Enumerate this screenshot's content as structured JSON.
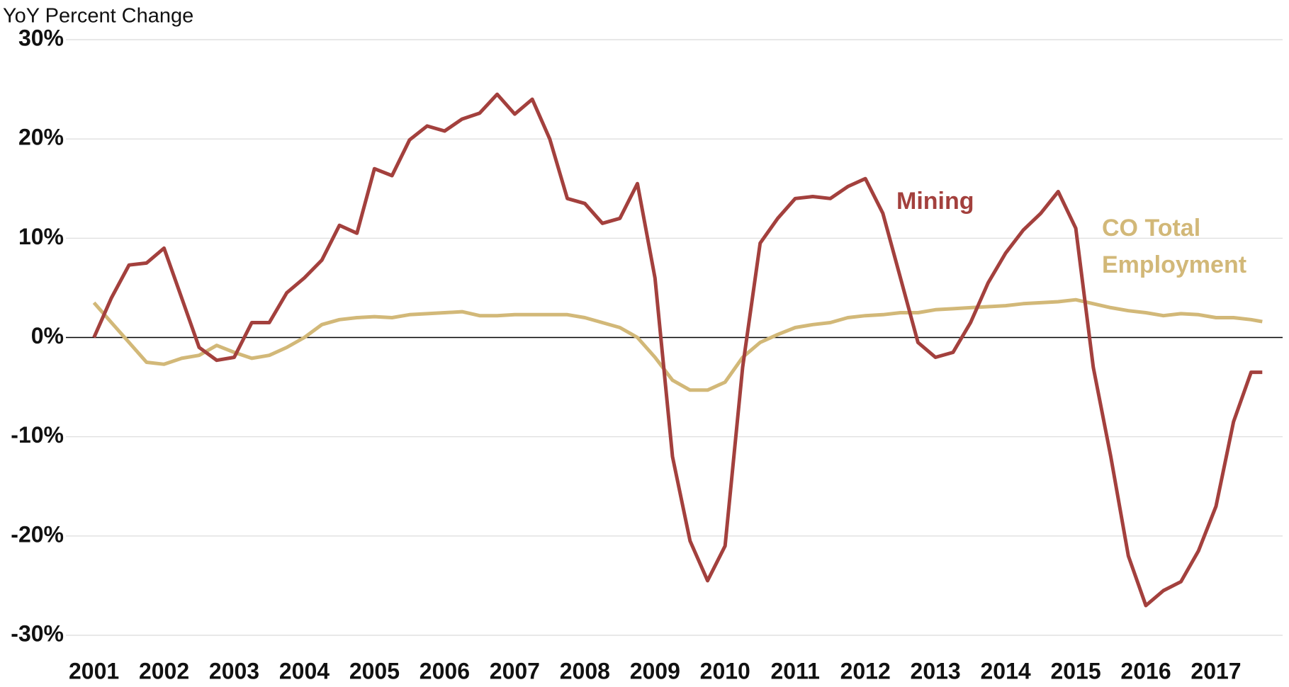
{
  "chart_data": {
    "type": "line",
    "y_axis_label": "YoY Percent Change",
    "x": [
      2001,
      2001.25,
      2001.5,
      2001.75,
      2002,
      2002.25,
      2002.5,
      2002.75,
      2003,
      2003.25,
      2003.5,
      2003.75,
      2004,
      2004.25,
      2004.5,
      2004.75,
      2005,
      2005.25,
      2005.5,
      2005.75,
      2006,
      2006.25,
      2006.5,
      2006.75,
      2007,
      2007.25,
      2007.5,
      2007.75,
      2008,
      2008.25,
      2008.5,
      2008.75,
      2009,
      2009.25,
      2009.5,
      2009.75,
      2010,
      2010.25,
      2010.5,
      2010.75,
      2011,
      2011.25,
      2011.5,
      2011.75,
      2012,
      2012.25,
      2012.5,
      2012.75,
      2013,
      2013.25,
      2013.5,
      2013.75,
      2014,
      2014.25,
      2014.5,
      2014.75,
      2015,
      2015.25,
      2015.5,
      2015.75,
      2016,
      2016.25,
      2016.5,
      2016.75,
      2017,
      2017.25,
      2017.5,
      2017.66
    ],
    "series": [
      {
        "name": "Mining",
        "color": "#a3403d",
        "label_at": "peak",
        "values": [
          0,
          4,
          7.3,
          7.5,
          9,
          4,
          -1,
          -2.3,
          -2,
          1.5,
          1.5,
          4.5,
          6,
          7.8,
          11.3,
          10.5,
          17,
          16.3,
          19.9,
          21.3,
          20.8,
          22,
          22.6,
          24.5,
          22.5,
          24,
          20,
          14,
          13.5,
          11.5,
          12,
          15.5,
          6,
          -12,
          -20.5,
          -24.5,
          -21,
          -3,
          9.5,
          12,
          14,
          14.2,
          14,
          15.2,
          16,
          12.5,
          6,
          -0.5,
          -2,
          -1.5,
          1.5,
          5.5,
          8.5,
          10.8,
          12.5,
          14.7,
          11,
          -3,
          -12,
          -22,
          -27,
          -25.5,
          -24.6,
          -21.5,
          -17,
          -8.5,
          -3.5,
          -3.5
        ]
      },
      {
        "name": "CO Total Employment",
        "color": "#d2b878",
        "values": [
          3.5,
          1.5,
          -0.5,
          -2.5,
          -2.7,
          -2.1,
          -1.8,
          -0.8,
          -1.5,
          -2.1,
          -1.8,
          -1,
          0,
          1.3,
          1.8,
          2,
          2.1,
          2,
          2.3,
          2.4,
          2.5,
          2.6,
          2.2,
          2.2,
          2.3,
          2.3,
          2.3,
          2.3,
          2,
          1.5,
          1,
          0,
          -2,
          -4.3,
          -5.3,
          -5.3,
          -4.5,
          -2,
          -0.5,
          0.3,
          1,
          1.3,
          1.5,
          2,
          2.2,
          2.3,
          2.5,
          2.5,
          2.8,
          2.9,
          3,
          3.1,
          3.2,
          3.4,
          3.5,
          3.6,
          3.8,
          3.4,
          3,
          2.7,
          2.5,
          2.2,
          2.4,
          2.3,
          2,
          2,
          1.8,
          1.6
        ]
      }
    ],
    "xlim": [
      2000.6,
      2017.95
    ],
    "xticks": [
      2001,
      2002,
      2003,
      2004,
      2005,
      2006,
      2007,
      2008,
      2009,
      2010,
      2011,
      2012,
      2013,
      2014,
      2015,
      2016,
      2017
    ],
    "ylim": [
      -30,
      30
    ],
    "yticks": [
      {
        "value": -30,
        "label": "-30%"
      },
      {
        "value": -20,
        "label": "-20%"
      },
      {
        "value": -10,
        "label": "-10%"
      },
      {
        "value": 0,
        "label": "0%"
      },
      {
        "value": 10,
        "label": "10%"
      },
      {
        "value": 20,
        "label": "20%"
      },
      {
        "value": 30,
        "label": "30%"
      }
    ],
    "grid": true
  }
}
